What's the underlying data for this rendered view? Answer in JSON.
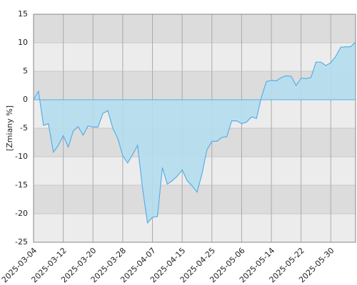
{
  "chart_data": {
    "type": "area",
    "y_label": "[Zmiany %]",
    "categories": [
      "2025-03-04",
      null,
      null,
      null,
      null,
      null,
      "2025-03-12",
      null,
      null,
      null,
      null,
      null,
      "2025-03-20",
      null,
      null,
      null,
      null,
      null,
      "2025-03-28",
      null,
      null,
      null,
      null,
      null,
      "2025-04-07",
      null,
      null,
      null,
      null,
      null,
      "2025-04-15",
      null,
      null,
      null,
      null,
      null,
      "2025-04-25",
      null,
      null,
      null,
      null,
      null,
      "2025-05-06",
      null,
      null,
      null,
      null,
      null,
      "2025-05-14",
      null,
      null,
      null,
      null,
      null,
      "2025-05-22",
      null,
      null,
      null,
      null,
      null,
      "2025-05-30",
      null,
      null,
      null,
      null,
      null
    ],
    "values": [
      0,
      1.5,
      -4.5,
      -4.2,
      -9.2,
      -8,
      -6.3,
      -8.3,
      -5.5,
      -4.7,
      -6.2,
      -4.6,
      -4.8,
      -4.8,
      -2.4,
      -1.9,
      -5.0,
      -6.8,
      -9.8,
      -11.1,
      -9.6,
      -8.0,
      -15.5,
      -21.6,
      -20.6,
      -20.5,
      -11.9,
      -14.8,
      -14.2,
      -13.4,
      -12.3,
      -14.2,
      -15.1,
      -16.2,
      -13.0,
      -8.8,
      -7.3,
      -7.3,
      -6.6,
      -6.5,
      -3.7,
      -3.7,
      -4.2,
      -3.9,
      -3.0,
      -3.3,
      0.5,
      3.2,
      3.4,
      3.3,
      3.9,
      4.2,
      4.1,
      2.5,
      3.8,
      3.7,
      3.9,
      6.6,
      6.6,
      6.0,
      6.5,
      7.6,
      9.2,
      9.3,
      9.3,
      10.1
    ],
    "color": "#5aaee6",
    "fill": "#b4def0",
    "ylim": [
      -25,
      15
    ],
    "yticks": [
      -25,
      -20,
      -15,
      -10,
      -5,
      0,
      5,
      10,
      15
    ],
    "grid": true
  }
}
